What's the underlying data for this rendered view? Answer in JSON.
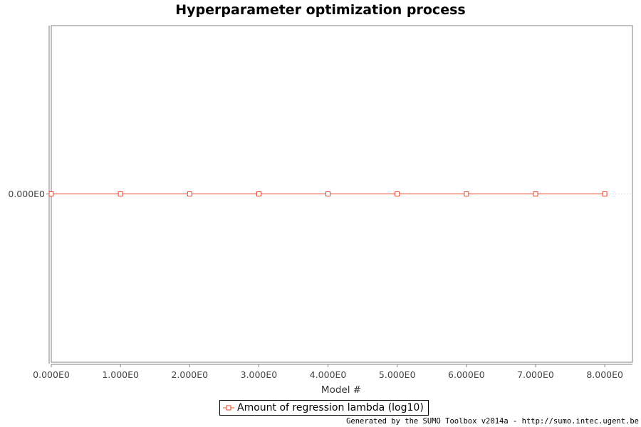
{
  "chart_data": {
    "type": "line",
    "title": "Hyperparameter optimization process",
    "xlabel": "Model #",
    "ylabel": "",
    "x": [
      0,
      1,
      2,
      3,
      4,
      5,
      6,
      7,
      8
    ],
    "series": [
      {
        "name": "Amount of regression lambda (log10)",
        "values": [
          0,
          0,
          0,
          0,
          0,
          0,
          0,
          0,
          0
        ],
        "color": "#e8402a",
        "marker": "open-square"
      }
    ],
    "xlim": [
      0,
      8.4
    ],
    "ylim": [
      -0.5,
      0.5
    ],
    "x_ticks": [
      0,
      1,
      2,
      3,
      4,
      5,
      6,
      7,
      8
    ],
    "x_tick_labels": [
      "0.000E0",
      "1.000E0",
      "2.000E0",
      "3.000E0",
      "4.000E0",
      "5.000E0",
      "6.000E0",
      "7.000E0",
      "8.000E0"
    ],
    "y_ticks": [
      0
    ],
    "y_tick_labels": [
      "0.000E0"
    ],
    "grid": true,
    "legend_position": "bottom-center"
  },
  "footer": {
    "credit": "Generated by the SUMO Toolbox v2014a - http://sumo.intec.ugent.be"
  }
}
